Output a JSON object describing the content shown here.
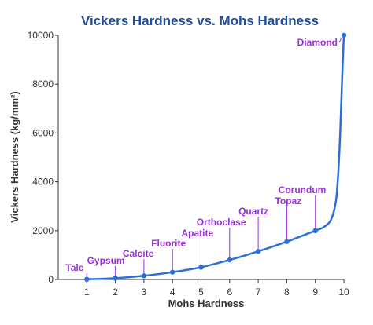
{
  "chart_data": {
    "type": "line",
    "title": "Vickers Hardness vs. Mohs Hardness",
    "xlabel": "Mohs Hardness",
    "ylabel": "Vickers Hardness (kg/mm²)",
    "xlim": [
      0,
      10
    ],
    "ylim": [
      0,
      10000
    ],
    "x_ticks": [
      "1",
      "2",
      "3",
      "4",
      "5",
      "6",
      "7",
      "8",
      "9",
      "10"
    ],
    "y_ticks": [
      "0",
      "2000",
      "4000",
      "6000",
      "8000",
      "10000"
    ],
    "grid": false,
    "points": [
      {
        "x": 1,
        "y": 10,
        "label": "Talc"
      },
      {
        "x": 2,
        "y": 50,
        "label": "Gypsum"
      },
      {
        "x": 3,
        "y": 150,
        "label": "Calcite"
      },
      {
        "x": 4,
        "y": 300,
        "label": "Fluorite"
      },
      {
        "x": 5,
        "y": 500,
        "label": "Apatite"
      },
      {
        "x": 6,
        "y": 800,
        "label": "Orthoclase"
      },
      {
        "x": 7,
        "y": 1150,
        "label": "Quartz"
      },
      {
        "x": 8,
        "y": 1550,
        "label": "Topaz"
      },
      {
        "x": 9,
        "y": 2000,
        "label": "Corundum"
      },
      {
        "x": 10,
        "y": 10000,
        "label": "Diamond"
      }
    ],
    "curve_extra": [
      {
        "x": 9.3,
        "y": 2150
      },
      {
        "x": 9.55,
        "y": 2450
      },
      {
        "x": 9.72,
        "y": 3200
      },
      {
        "x": 9.8,
        "y": 4300
      },
      {
        "x": 9.87,
        "y": 6000
      },
      {
        "x": 9.93,
        "y": 8000
      },
      {
        "x": 10,
        "y": 10000
      }
    ]
  },
  "colors": {
    "title": "#1f4e9e",
    "line": "#2e6fd6",
    "label": "#9b30d9",
    "axis": "#333333"
  }
}
